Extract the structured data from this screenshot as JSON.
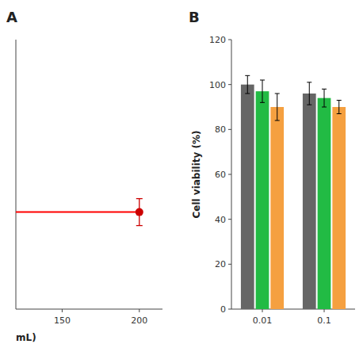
{
  "chart_data": [
    {
      "type": "line",
      "title": "A",
      "xlabel": "mL)",
      "xlim": [
        120,
        215
      ],
      "xticks": [
        150,
        200
      ],
      "ylim": [
        60,
        110
      ],
      "tick_labels": "x",
      "series": [
        {
          "type": "line",
          "color": "#ff0000",
          "x": [
            120,
            200
          ],
          "values": [
            78,
            78
          ]
        },
        {
          "type": "scatter",
          "color": "#cc0000",
          "x": [
            200
          ],
          "values": [
            78
          ],
          "errors": [
            2.5
          ]
        }
      ]
    },
    {
      "type": "bar",
      "title": "B",
      "ylabel": "Cell viability (%)",
      "categories": [
        "0.01",
        "0.1"
      ],
      "ylim": [
        0,
        120
      ],
      "yticks": [
        0,
        20,
        40,
        60,
        80,
        100,
        120
      ],
      "series": [
        {
          "color": "#666666",
          "values": [
            100,
            96
          ],
          "errors": [
            4,
            5
          ]
        },
        {
          "color": "#22bb44",
          "values": [
            97,
            94
          ],
          "errors": [
            5,
            4
          ]
        },
        {
          "color": "#f5a040",
          "values": [
            90,
            90
          ],
          "errors": [
            6,
            3
          ]
        }
      ]
    }
  ]
}
